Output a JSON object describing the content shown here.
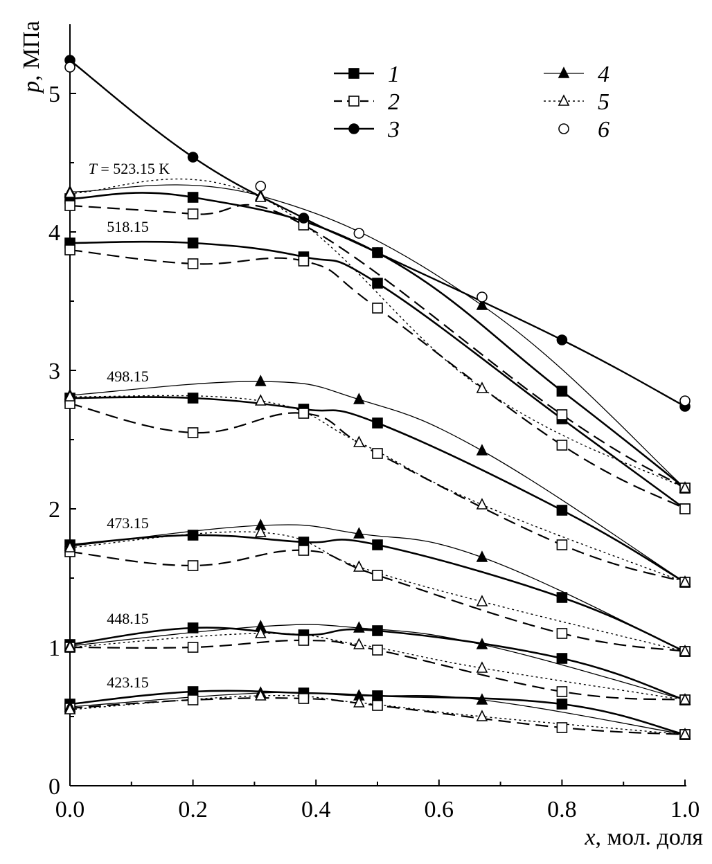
{
  "chart_data": {
    "type": "line",
    "title": "",
    "xlabel": {
      "var": "x",
      "rest": ", мол. доля"
    },
    "ylabel": {
      "var": "p",
      "rest": ", МПа"
    },
    "xlim": [
      0,
      1
    ],
    "ylim": [
      0,
      5.5
    ],
    "xticks": [
      0,
      0.2,
      0.4,
      0.6,
      0.8,
      1.0
    ],
    "xtick_labels": [
      "0.0",
      "0.2",
      "0.4",
      "0.6",
      "0.8",
      "1.0"
    ],
    "yticks": [
      0,
      1,
      2,
      3,
      4,
      5
    ],
    "ytick_labels": [
      "0",
      "1",
      "2",
      "3",
      "4",
      "5"
    ],
    "legend": [
      {
        "label": "1",
        "marker": "square-filled",
        "line": "solid"
      },
      {
        "label": "2",
        "marker": "square-open",
        "line": "dashed"
      },
      {
        "label": "3",
        "marker": "circle-filled",
        "line": "solid"
      },
      {
        "label": "4",
        "marker": "triangle-filled",
        "line": "solid-thin"
      },
      {
        "label": "5",
        "marker": "triangle-open",
        "line": "dotted"
      },
      {
        "label": "6",
        "marker": "circle-open",
        "line": "none"
      }
    ],
    "temperature_labels": [
      {
        "prefix": "T",
        "text": " = 523.15 K",
        "x": 0.03,
        "y": 4.42
      },
      {
        "prefix": "",
        "text": "518.15",
        "x": 0.06,
        "y": 4.0
      },
      {
        "prefix": "",
        "text": "498.15",
        "x": 0.06,
        "y": 2.92
      },
      {
        "prefix": "",
        "text": "473.15",
        "x": 0.06,
        "y": 1.86
      },
      {
        "prefix": "",
        "text": "448.15",
        "x": 0.06,
        "y": 1.17
      },
      {
        "prefix": "",
        "text": "423.15",
        "x": 0.06,
        "y": 0.71
      }
    ],
    "series": [
      {
        "name": "1",
        "temperature": "423.15",
        "x": [
          0,
          0.2,
          0.38,
          0.5,
          0.8,
          1.0
        ],
        "y": [
          0.59,
          0.68,
          0.67,
          0.65,
          0.59,
          0.37
        ]
      },
      {
        "name": "2",
        "temperature": "423.15",
        "x": [
          0,
          0.2,
          0.38,
          0.5,
          0.8,
          1.0
        ],
        "y": [
          0.56,
          0.62,
          0.63,
          0.58,
          0.42,
          0.37
        ]
      },
      {
        "name": "4",
        "temperature": "423.15",
        "x": [
          0,
          0.31,
          0.47,
          0.67,
          1.0
        ],
        "y": [
          0.57,
          0.67,
          0.65,
          0.62,
          0.37
        ]
      },
      {
        "name": "5",
        "temperature": "423.15",
        "x": [
          0,
          0.31,
          0.47,
          0.67,
          1.0
        ],
        "y": [
          0.55,
          0.65,
          0.6,
          0.5,
          0.37
        ]
      },
      {
        "name": "1",
        "temperature": "448.15",
        "x": [
          0,
          0.2,
          0.38,
          0.5,
          0.8,
          1.0
        ],
        "y": [
          1.02,
          1.14,
          1.09,
          1.12,
          0.92,
          0.62
        ]
      },
      {
        "name": "2",
        "temperature": "448.15",
        "x": [
          0,
          0.2,
          0.38,
          0.5,
          0.8,
          1.0
        ],
        "y": [
          1.0,
          1.0,
          1.05,
          0.98,
          0.68,
          0.62
        ]
      },
      {
        "name": "4",
        "temperature": "448.15",
        "x": [
          0,
          0.31,
          0.47,
          0.67,
          1.0
        ],
        "y": [
          1.01,
          1.15,
          1.14,
          1.02,
          0.62
        ]
      },
      {
        "name": "5",
        "temperature": "448.15",
        "x": [
          0,
          0.31,
          0.47,
          0.67,
          1.0
        ],
        "y": [
          1.0,
          1.1,
          1.02,
          0.85,
          0.62
        ]
      },
      {
        "name": "1",
        "temperature": "473.15",
        "x": [
          0,
          0.2,
          0.38,
          0.5,
          0.8,
          1.0
        ],
        "y": [
          1.74,
          1.81,
          1.76,
          1.74,
          1.36,
          0.97
        ]
      },
      {
        "name": "2",
        "temperature": "473.15",
        "x": [
          0,
          0.2,
          0.38,
          0.5,
          0.8,
          1.0
        ],
        "y": [
          1.69,
          1.59,
          1.7,
          1.52,
          1.1,
          0.97
        ]
      },
      {
        "name": "4",
        "temperature": "473.15",
        "x": [
          0,
          0.31,
          0.47,
          0.67,
          1.0
        ],
        "y": [
          1.73,
          1.88,
          1.82,
          1.65,
          0.97
        ]
      },
      {
        "name": "5",
        "temperature": "473.15",
        "x": [
          0,
          0.31,
          0.47,
          0.67,
          1.0
        ],
        "y": [
          1.72,
          1.83,
          1.58,
          1.33,
          0.97
        ]
      },
      {
        "name": "1",
        "temperature": "498.15",
        "x": [
          0,
          0.2,
          0.38,
          0.5,
          0.8,
          1.0
        ],
        "y": [
          2.8,
          2.8,
          2.72,
          2.62,
          1.99,
          1.47
        ]
      },
      {
        "name": "2",
        "temperature": "498.15",
        "x": [
          0,
          0.2,
          0.38,
          0.5,
          0.8,
          1.0
        ],
        "y": [
          2.76,
          2.55,
          2.69,
          2.4,
          1.74,
          1.47
        ]
      },
      {
        "name": "4",
        "temperature": "498.15",
        "x": [
          0,
          0.31,
          0.47,
          0.67,
          1.0
        ],
        "y": [
          2.82,
          2.92,
          2.79,
          2.42,
          1.47
        ]
      },
      {
        "name": "5",
        "temperature": "498.15",
        "x": [
          0,
          0.31,
          0.47,
          0.67,
          1.0
        ],
        "y": [
          2.81,
          2.78,
          2.48,
          2.03,
          1.47
        ]
      },
      {
        "name": "1",
        "temperature": "518.15",
        "x": [
          0,
          0.2,
          0.38,
          0.5,
          0.8,
          1.0
        ],
        "y": [
          3.92,
          3.92,
          3.82,
          3.63,
          2.65,
          2.0
        ]
      },
      {
        "name": "2",
        "temperature": "518.15",
        "x": [
          0,
          0.2,
          0.38,
          0.5,
          0.8,
          1.0
        ],
        "y": [
          3.87,
          3.77,
          3.79,
          3.45,
          2.46,
          2.0
        ]
      },
      {
        "name": "1",
        "temperature": "523.15",
        "x": [
          0,
          0.2,
          0.5,
          0.8,
          1.0
        ],
        "y": [
          4.24,
          4.25,
          3.85,
          2.85,
          2.15
        ]
      },
      {
        "name": "2",
        "temperature": "523.15",
        "x": [
          0,
          0.2,
          0.38,
          0.8,
          1.0
        ],
        "y": [
          4.19,
          4.13,
          4.05,
          2.68,
          2.15
        ]
      },
      {
        "name": "4",
        "temperature": "523.15",
        "x": [
          0,
          0.31,
          0.67,
          1.0
        ],
        "y": [
          4.29,
          4.26,
          3.47,
          2.15
        ]
      },
      {
        "name": "5",
        "temperature": "523.15",
        "x": [
          0,
          0.31,
          0.67,
          1.0
        ],
        "y": [
          4.28,
          4.25,
          2.87,
          2.15
        ]
      },
      {
        "name": "3",
        "temperature": "critical",
        "x": [
          0,
          0.2,
          0.38,
          0.5,
          0.8,
          1.0
        ],
        "y": [
          5.24,
          4.54,
          4.1,
          3.85,
          3.22,
          2.74
        ]
      },
      {
        "name": "6",
        "temperature": "critical",
        "x": [
          0,
          0.31,
          0.47,
          0.67,
          1.0
        ],
        "y": [
          5.19,
          4.33,
          3.99,
          3.53,
          2.78
        ]
      }
    ]
  }
}
